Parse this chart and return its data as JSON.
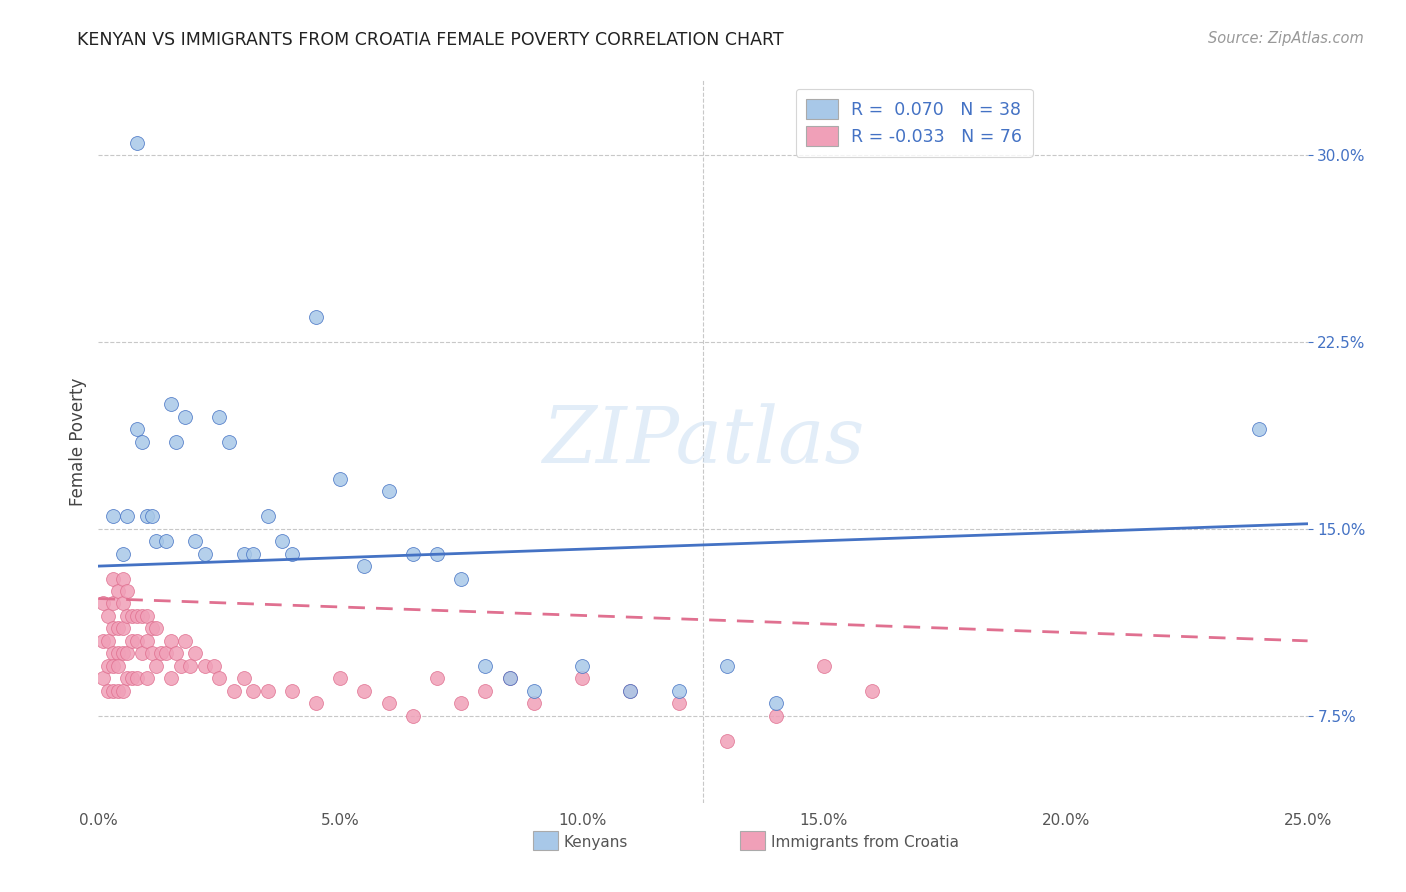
{
  "title": "KENYAN VS IMMIGRANTS FROM CROATIA FEMALE POVERTY CORRELATION CHART",
  "source": "Source: ZipAtlas.com",
  "xlim": [
    0.0,
    0.25
  ],
  "ylim": [
    0.04,
    0.33
  ],
  "series1_label": "Kenyans",
  "series2_label": "Immigrants from Croatia",
  "color1": "#a8c8e8",
  "color2": "#f0a0b8",
  "line_color1": "#4472c4",
  "line_color2": "#e07090",
  "watermark": "ZIPatlas",
  "background_color": "#ffffff",
  "grid_color": "#c8c8c8",
  "legend_label1": "R =  0.070   N = 38",
  "legend_label2": "R = -0.033   N = 76",
  "kenyans_x": [
    0.008,
    0.01,
    0.012,
    0.015,
    0.016,
    0.018,
    0.02,
    0.022,
    0.025,
    0.027,
    0.03,
    0.032,
    0.035,
    0.038,
    0.04,
    0.045,
    0.05,
    0.055,
    0.06,
    0.065,
    0.07,
    0.075,
    0.08,
    0.085,
    0.09,
    0.1,
    0.11,
    0.12,
    0.13,
    0.14,
    0.003,
    0.005,
    0.006,
    0.008,
    0.009,
    0.011,
    0.014,
    0.24
  ],
  "kenyans_y": [
    0.305,
    0.155,
    0.145,
    0.2,
    0.185,
    0.195,
    0.145,
    0.14,
    0.195,
    0.185,
    0.14,
    0.14,
    0.155,
    0.145,
    0.14,
    0.235,
    0.17,
    0.135,
    0.165,
    0.14,
    0.14,
    0.13,
    0.095,
    0.09,
    0.085,
    0.095,
    0.085,
    0.085,
    0.095,
    0.08,
    0.155,
    0.14,
    0.155,
    0.19,
    0.185,
    0.155,
    0.145,
    0.19
  ],
  "croatia_x": [
    0.001,
    0.001,
    0.001,
    0.002,
    0.002,
    0.002,
    0.002,
    0.003,
    0.003,
    0.003,
    0.003,
    0.003,
    0.003,
    0.004,
    0.004,
    0.004,
    0.004,
    0.004,
    0.005,
    0.005,
    0.005,
    0.005,
    0.005,
    0.006,
    0.006,
    0.006,
    0.006,
    0.007,
    0.007,
    0.007,
    0.008,
    0.008,
    0.008,
    0.009,
    0.009,
    0.01,
    0.01,
    0.01,
    0.011,
    0.011,
    0.012,
    0.012,
    0.013,
    0.014,
    0.015,
    0.015,
    0.016,
    0.017,
    0.018,
    0.019,
    0.02,
    0.022,
    0.024,
    0.025,
    0.028,
    0.03,
    0.032,
    0.035,
    0.04,
    0.045,
    0.05,
    0.055,
    0.06,
    0.065,
    0.07,
    0.075,
    0.08,
    0.085,
    0.09,
    0.1,
    0.11,
    0.12,
    0.13,
    0.14,
    0.15,
    0.16
  ],
  "croatia_y": [
    0.12,
    0.105,
    0.09,
    0.115,
    0.105,
    0.095,
    0.085,
    0.13,
    0.12,
    0.11,
    0.1,
    0.095,
    0.085,
    0.125,
    0.11,
    0.1,
    0.095,
    0.085,
    0.13,
    0.12,
    0.11,
    0.1,
    0.085,
    0.125,
    0.115,
    0.1,
    0.09,
    0.115,
    0.105,
    0.09,
    0.115,
    0.105,
    0.09,
    0.115,
    0.1,
    0.115,
    0.105,
    0.09,
    0.11,
    0.1,
    0.11,
    0.095,
    0.1,
    0.1,
    0.105,
    0.09,
    0.1,
    0.095,
    0.105,
    0.095,
    0.1,
    0.095,
    0.095,
    0.09,
    0.085,
    0.09,
    0.085,
    0.085,
    0.085,
    0.08,
    0.09,
    0.085,
    0.08,
    0.075,
    0.09,
    0.08,
    0.085,
    0.09,
    0.08,
    0.09,
    0.085,
    0.08,
    0.065,
    0.075,
    0.095,
    0.085
  ]
}
